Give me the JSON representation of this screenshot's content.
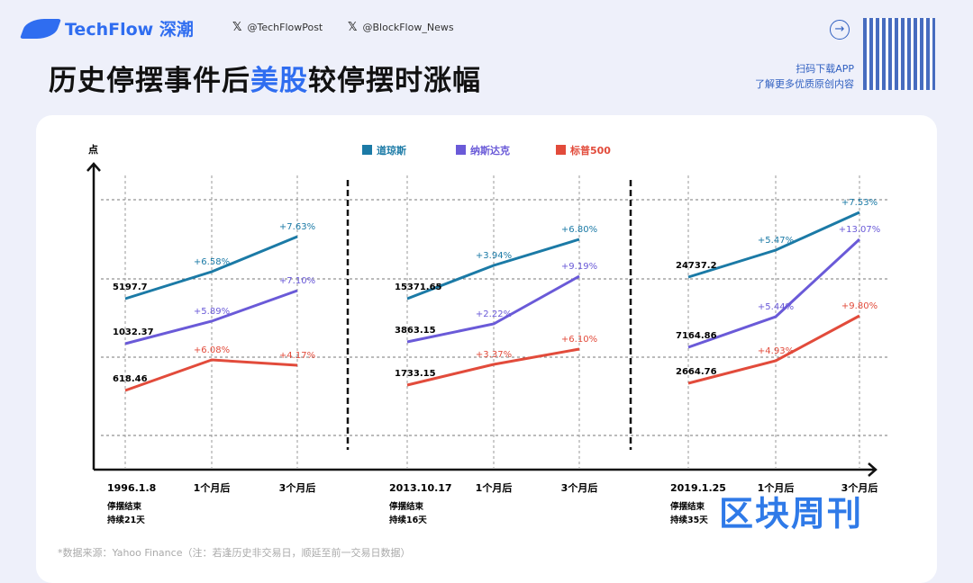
{
  "header": {
    "brand": "TechFlow 深潮",
    "social": [
      "@TechFlowPost",
      "@BlockFlow_News"
    ],
    "title_pre": "历史停摆事件后",
    "title_hl": "美股",
    "title_post": "较停摆时涨幅",
    "promo": [
      "扫码下载APP",
      "了解更多优质原创内容"
    ]
  },
  "chart_data": {
    "type": "line",
    "ylabel": "点",
    "legend": [
      "道琼斯",
      "纳斯达克",
      "标普500"
    ],
    "colors": [
      "#1b7aa6",
      "#6a5ad8",
      "#e24b3b"
    ],
    "x_ticks": [
      "1个月后",
      "3个月后"
    ],
    "periods": [
      {
        "date": "1996.1.8",
        "note1": "停摆结束",
        "note2": "持续21天",
        "series": [
          {
            "name": "道琼斯",
            "base": "5197.7",
            "changes": [
              "+6.58%",
              "+7.63%"
            ]
          },
          {
            "name": "纳斯达克",
            "base": "1032.37",
            "changes": [
              "+5.89%",
              "+7.10%"
            ]
          },
          {
            "name": "标普500",
            "base": "618.46",
            "changes": [
              "+6.08%",
              "+4.17%"
            ]
          }
        ]
      },
      {
        "date": "2013.10.17",
        "note1": "停摆结束",
        "note2": "持续16天",
        "series": [
          {
            "name": "道琼斯",
            "base": "15371.65",
            "changes": [
              "+3.94%",
              "+6.80%"
            ]
          },
          {
            "name": "纳斯达克",
            "base": "3863.15",
            "changes": [
              "+2.22%",
              "+9.19%"
            ]
          },
          {
            "name": "标普500",
            "base": "1733.15",
            "changes": [
              "+3.37%",
              "+6.10%"
            ]
          }
        ]
      },
      {
        "date": "2019.1.25",
        "note1": "停摆结束",
        "note2": "持续35天",
        "series": [
          {
            "name": "道琼斯",
            "base": "24737.2",
            "changes": [
              "+5.47%",
              "+7.53%"
            ]
          },
          {
            "name": "纳斯达克",
            "base": "7164.86",
            "changes": [
              "+5.44%",
              "+13.07%"
            ]
          },
          {
            "name": "标普500",
            "base": "2664.76",
            "changes": [
              "+4.93%",
              "+9.80%"
            ]
          }
        ]
      }
    ]
  },
  "footnote": "*数据来源：Yahoo Finance（注：若逢历史非交易日，顺延至前一交易日数据）",
  "watermark": "区块周刊"
}
